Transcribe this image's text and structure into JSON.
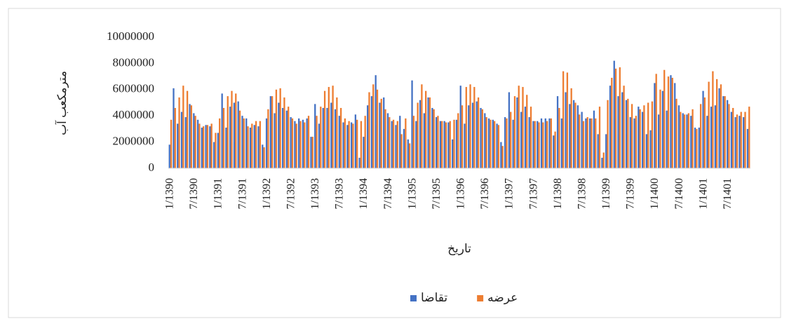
{
  "chart_data": {
    "type": "bar",
    "categories": [
      "1/1390",
      null,
      null,
      null,
      null,
      null,
      "7/1390",
      null,
      null,
      null,
      null,
      null,
      "1/1391",
      null,
      null,
      null,
      null,
      null,
      "7/1391",
      null,
      null,
      null,
      null,
      null,
      "1/1392",
      null,
      null,
      null,
      null,
      null,
      "7/1392",
      null,
      null,
      null,
      null,
      null,
      "1/1393",
      null,
      null,
      null,
      null,
      null,
      "7/1393",
      null,
      null,
      null,
      null,
      null,
      "1/1394",
      null,
      null,
      null,
      null,
      null,
      "7/1394",
      null,
      null,
      null,
      null,
      null,
      "1/1395",
      null,
      null,
      null,
      null,
      null,
      "7/1395",
      null,
      null,
      null,
      null,
      null,
      "1/1396",
      null,
      null,
      null,
      null,
      null,
      "7/1396",
      null,
      null,
      null,
      null,
      null,
      "1/1397",
      null,
      null,
      null,
      null,
      null,
      "7/1397",
      null,
      null,
      null,
      null,
      null,
      "1/1398",
      null,
      null,
      null,
      null,
      null,
      "7/1398",
      null,
      null,
      null,
      null,
      null,
      "1/1399",
      null,
      null,
      null,
      null,
      null,
      "7/1399",
      null,
      null,
      null,
      null,
      null,
      "1/1400",
      null,
      null,
      null,
      null,
      null,
      "7/1400",
      null,
      null,
      null,
      null,
      null,
      "1/1401",
      null,
      null,
      null,
      null,
      null,
      "7/1401",
      null,
      null,
      null,
      null,
      null
    ],
    "series": [
      {
        "name": "تقاضا",
        "color": "#4472c4",
        "values": [
          1800000,
          6100000,
          3400000,
          4300000,
          3900000,
          4900000,
          4200000,
          3700000,
          3100000,
          3300000,
          3200000,
          2000000,
          2700000,
          5700000,
          3100000,
          4700000,
          5000000,
          5100000,
          4000000,
          3800000,
          3100000,
          3300000,
          3200000,
          1800000,
          3800000,
          5500000,
          4200000,
          5000000,
          4600000,
          4400000,
          3900000,
          3600000,
          3800000,
          3700000,
          3800000,
          2400000,
          4900000,
          3400000,
          4600000,
          4600000,
          5000000,
          4500000,
          4000000,
          3500000,
          3300000,
          3500000,
          4100000,
          800000,
          2400000,
          4800000,
          5500000,
          7100000,
          5000000,
          5400000,
          4200000,
          3600000,
          3300000,
          4000000,
          3000000,
          2200000,
          6700000,
          3600000,
          5200000,
          4200000,
          5400000,
          4600000,
          3900000,
          3600000,
          3600000,
          3500000,
          2200000,
          3700000,
          6300000,
          3400000,
          4800000,
          5000000,
          5100000,
          4600000,
          4200000,
          3800000,
          3700000,
          3400000,
          2000000,
          3900000,
          5800000,
          3700000,
          5400000,
          4300000,
          4700000,
          3900000,
          3600000,
          3600000,
          3800000,
          3800000,
          3800000,
          2500000,
          5500000,
          3800000,
          5800000,
          4900000,
          5200000,
          4800000,
          4300000,
          3800000,
          3800000,
          4400000,
          2600000,
          800000,
          2600000,
          6300000,
          8200000,
          5500000,
          5800000,
          5200000,
          3900000,
          3800000,
          4700000,
          4300000,
          2600000,
          2900000,
          6500000,
          4100000,
          5900000,
          4400000,
          7100000,
          6500000,
          4800000,
          4200000,
          4100000,
          4000000,
          3100000,
          3100000,
          5900000,
          4000000,
          4700000,
          4800000,
          6100000,
          5500000,
          5200000,
          4300000,
          3900000,
          4000000,
          3900000,
          3000000
        ]
      },
      {
        "name": "عرضه",
        "color": "#ed7d31",
        "values": [
          3700000,
          4600000,
          5400000,
          6300000,
          5900000,
          4800000,
          4000000,
          3400000,
          3200000,
          3300000,
          3400000,
          2700000,
          3800000,
          4600000,
          5500000,
          5900000,
          5700000,
          4400000,
          3800000,
          3200000,
          3400000,
          3600000,
          3600000,
          1600000,
          4500000,
          5500000,
          6000000,
          6100000,
          5400000,
          4700000,
          3800000,
          3400000,
          3600000,
          3500000,
          4000000,
          2400000,
          4000000,
          4700000,
          5900000,
          6200000,
          6300000,
          5400000,
          4600000,
          3800000,
          3600000,
          3400000,
          3700000,
          3600000,
          4000000,
          5800000,
          6400000,
          6000000,
          5300000,
          4500000,
          3900000,
          3700000,
          3600000,
          2600000,
          3800000,
          1900000,
          4000000,
          5000000,
          6400000,
          5900000,
          5400000,
          4500000,
          4000000,
          3600000,
          3500000,
          3600000,
          3700000,
          4200000,
          4800000,
          6200000,
          6400000,
          6200000,
          5400000,
          4500000,
          3900000,
          3700000,
          3600000,
          3300000,
          1700000,
          3800000,
          4300000,
          5500000,
          6300000,
          6200000,
          5600000,
          4700000,
          3600000,
          3500000,
          3500000,
          3600000,
          3800000,
          2800000,
          4600000,
          7400000,
          7300000,
          6100000,
          5000000,
          4100000,
          3600000,
          3900000,
          3800000,
          3800000,
          4700000,
          1200000,
          5200000,
          6900000,
          7600000,
          7700000,
          6300000,
          5300000,
          4900000,
          4000000,
          4500000,
          4800000,
          5000000,
          5100000,
          7200000,
          6000000,
          7500000,
          7000000,
          6900000,
          5300000,
          4300000,
          4100000,
          4200000,
          4500000,
          3000000,
          4900000,
          5400000,
          6600000,
          7400000,
          6800000,
          6400000,
          5500000,
          4900000,
          4600000,
          4100000,
          4300000,
          4300000,
          4700000
        ]
      }
    ],
    "ylim": [
      0,
      10000000
    ],
    "yticks": [
      0,
      2000000,
      4000000,
      6000000,
      8000000,
      10000000
    ],
    "xlabel": "تاریخ",
    "ylabel": "مترمکعب آب",
    "grid": false,
    "legend": "bottom"
  }
}
